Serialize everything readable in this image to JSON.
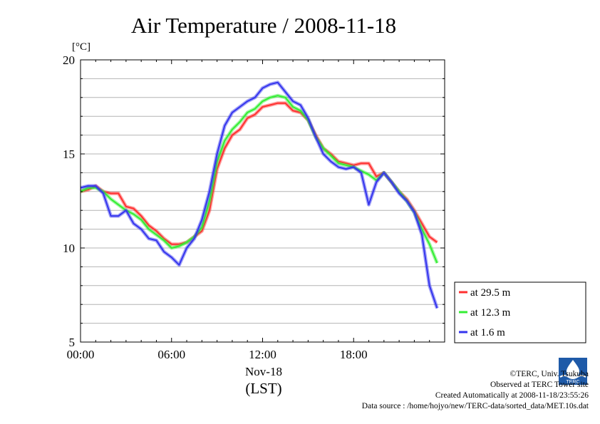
{
  "chart_data": {
    "type": "line",
    "title": "Air Temperature / 2008-11-18",
    "ylabel": "[°C]",
    "xlabel": "(LST)",
    "date_label": "Nov-18",
    "xlim": [
      "00:00",
      "24:00"
    ],
    "ylim": [
      5,
      20
    ],
    "yticks": [
      "5",
      "10",
      "15",
      "20"
    ],
    "xticks": [
      "00:00",
      "06:00",
      "12:00",
      "18:00"
    ],
    "grid": true,
    "legend_position": "right-bottom",
    "x": [
      "00:00",
      "00:30",
      "01:00",
      "01:30",
      "02:00",
      "02:30",
      "03:00",
      "03:30",
      "04:00",
      "04:30",
      "05:00",
      "05:30",
      "06:00",
      "06:30",
      "07:00",
      "07:30",
      "08:00",
      "08:30",
      "09:00",
      "09:30",
      "10:00",
      "10:30",
      "11:00",
      "11:30",
      "12:00",
      "12:30",
      "13:00",
      "13:30",
      "14:00",
      "14:30",
      "15:00",
      "15:30",
      "16:00",
      "16:30",
      "17:00",
      "17:30",
      "18:00",
      "18:30",
      "19:00",
      "19:30",
      "20:00",
      "20:30",
      "21:00",
      "21:30",
      "22:00",
      "22:30",
      "23:00",
      "23:30"
    ],
    "series": [
      {
        "name": "at 29.5 m",
        "color": "#ff3030",
        "values": [
          13.0,
          13.1,
          13.3,
          13.0,
          12.9,
          12.9,
          12.2,
          12.1,
          11.7,
          11.2,
          10.9,
          10.5,
          10.2,
          10.2,
          10.3,
          10.6,
          10.9,
          12.0,
          14.2,
          15.3,
          16.0,
          16.3,
          16.9,
          17.1,
          17.5,
          17.6,
          17.7,
          17.7,
          17.3,
          17.2,
          16.8,
          16.0,
          15.3,
          15.0,
          14.6,
          14.5,
          14.4,
          14.5,
          14.5,
          13.8,
          14.0,
          13.5,
          13.0,
          12.6,
          12.0,
          11.3,
          10.6,
          10.3
        ]
      },
      {
        "name": "at 12.3 m",
        "color": "#33ee33",
        "values": [
          13.0,
          13.2,
          13.2,
          13.0,
          12.6,
          12.3,
          12.0,
          11.8,
          11.5,
          11.0,
          10.7,
          10.4,
          10.0,
          10.1,
          10.3,
          10.6,
          11.1,
          12.5,
          14.6,
          15.7,
          16.3,
          16.7,
          17.2,
          17.4,
          17.8,
          18.0,
          18.1,
          18.0,
          17.5,
          17.3,
          16.8,
          15.9,
          15.3,
          14.9,
          14.5,
          14.4,
          14.3,
          14.1,
          13.9,
          13.6,
          14.0,
          13.5,
          13.0,
          12.5,
          11.9,
          11.0,
          10.2,
          9.2
        ]
      },
      {
        "name": "at 1.6 m",
        "color": "#3535ee",
        "values": [
          13.2,
          13.3,
          13.3,
          12.9,
          11.7,
          11.7,
          12.0,
          11.3,
          11.0,
          10.5,
          10.4,
          9.8,
          9.5,
          9.1,
          10.0,
          10.5,
          11.5,
          13.0,
          15.0,
          16.5,
          17.2,
          17.5,
          17.8,
          18.0,
          18.5,
          18.7,
          18.8,
          18.3,
          17.8,
          17.6,
          16.9,
          15.9,
          15.0,
          14.6,
          14.3,
          14.2,
          14.3,
          14.0,
          12.3,
          13.5,
          14.0,
          13.5,
          12.9,
          12.5,
          11.9,
          10.7,
          8.0,
          6.8
        ]
      }
    ]
  },
  "credits": {
    "copyright": "©TERC, Univ. Tsukuba",
    "observed": "Observed at TERC Tower site",
    "created": "Created Automatically at 2008-11-18/23:55:26",
    "source": "Data source : /home/hojyo/new/TERC-data/sorted_data/MET.10s.dat",
    "logo_text": "TERC"
  }
}
